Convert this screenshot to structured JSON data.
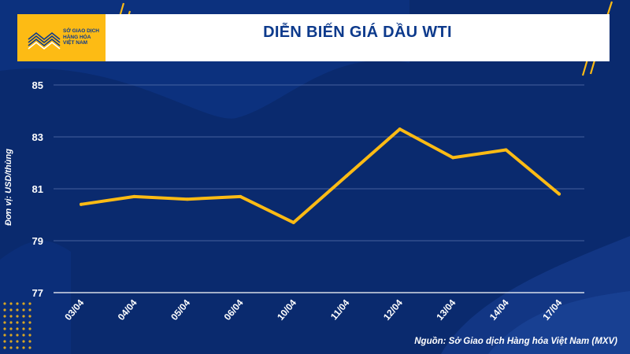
{
  "header": {
    "title": "DIỄN BIẾN GIÁ DẦU WTI",
    "logo_lines": [
      "SỞ GIAO DỊCH",
      "HÀNG HÓA",
      "VIỆT NAM"
    ]
  },
  "source": "Nguồn: Sở Giao dịch Hàng hóa Việt Nam (MXV)",
  "colors": {
    "background": "#0a2a6e",
    "accent": "#fdbb14",
    "line": "#fdbb14",
    "grid": "#5a73b0",
    "text": "#ffffff",
    "title": "#0d3a8c"
  },
  "chart_data": {
    "type": "line",
    "title": "DIỄN BIẾN GIÁ DẦU WTI",
    "xlabel": "",
    "ylabel": "Đơn vị: USD/thùng",
    "categories": [
      "03/04",
      "04/04",
      "05/04",
      "06/04",
      "10/04",
      "11/04",
      "12/04",
      "13/04",
      "14/04",
      "17/04"
    ],
    "series": [
      {
        "values": [
          80.4,
          80.7,
          80.6,
          80.7,
          79.7,
          81.5,
          83.3,
          82.2,
          82.5,
          80.8
        ]
      }
    ],
    "ylim": [
      77,
      85
    ],
    "yticks": [
      77,
      79,
      81,
      83,
      85
    ],
    "grid": true,
    "legend": "none"
  }
}
